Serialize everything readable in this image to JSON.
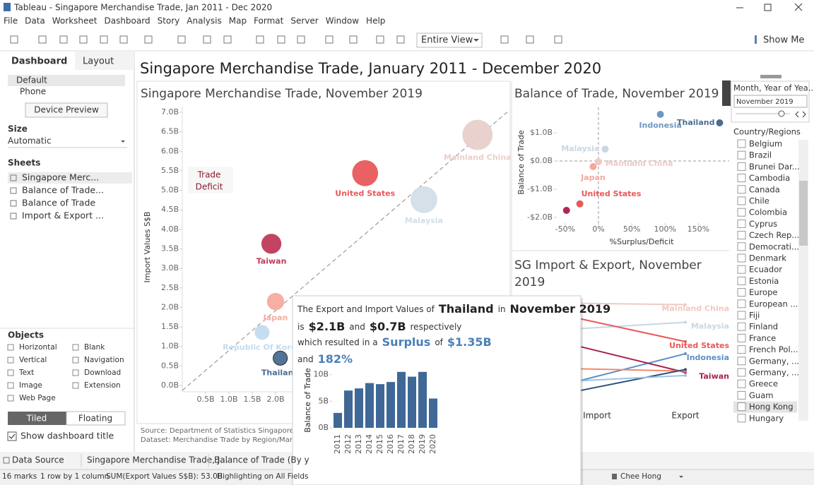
{
  "window": {
    "title": "Tableau - Singapore Merchandise Trade, Jan 2011 - Dec 2020"
  },
  "menu": [
    "File",
    "Data",
    "Worksheet",
    "Dashboard",
    "Story",
    "Analysis",
    "Map",
    "Format",
    "Server",
    "Window",
    "Help"
  ],
  "toolbar": {
    "view": "Entire View",
    "show_me": "Show Me"
  },
  "side_panel": {
    "tabs": [
      "Dashboard",
      "Layout"
    ],
    "devices": [
      "Default",
      "Phone"
    ],
    "device_preview": "Device Preview",
    "size_heading": "Size",
    "size_value": "Automatic",
    "sheets_heading": "Sheets",
    "sheets": [
      "Singapore Merc...",
      "Balance of Trade...",
      "Balance of Trade",
      "Import & Export ..."
    ],
    "objects_heading": "Objects",
    "objects": [
      "Horizontal",
      "Blank",
      "Vertical",
      "Navigation",
      "Text",
      "Download",
      "Image",
      "Extension",
      "Web Page"
    ],
    "layout_toggle": [
      "Tiled",
      "Floating"
    ],
    "show_title": "Show dashboard title"
  },
  "dashboard": {
    "title": "Singapore Merchandise Trade, January 2011 - December 2020",
    "scatter": {
      "title": "Singapore Merchandise Trade, November 2019",
      "y_label": "Import Values S$B",
      "annotation": [
        "Trade",
        "Deficit"
      ],
      "xlim": [
        0,
        7
      ],
      "ylim": [
        0,
        7
      ],
      "xticks": [
        {
          "value": 0.5,
          "label": "0.5B"
        },
        {
          "value": 1,
          "label": "1.0B"
        },
        {
          "value": 1.5,
          "label": "1.5B"
        },
        {
          "value": 2,
          "label": "2.0B"
        }
      ],
      "yticks": [
        {
          "value": 0,
          "label": "0.0B"
        },
        {
          "value": 0.5,
          "label": "0.5B"
        },
        {
          "value": 1,
          "label": "1.0B"
        },
        {
          "value": 1.5,
          "label": "1.5B"
        },
        {
          "value": 2,
          "label": "2.0B"
        },
        {
          "value": 2.5,
          "label": "2.5B"
        },
        {
          "value": 3,
          "label": "3.0B"
        },
        {
          "value": 3.5,
          "label": "3.5B"
        },
        {
          "value": 4,
          "label": "4.0B"
        },
        {
          "value": 4.5,
          "label": "4.5B"
        },
        {
          "value": 5,
          "label": "5.0B"
        },
        {
          "value": 5.5,
          "label": "5.5B"
        },
        {
          "value": 6,
          "label": "6.0B"
        },
        {
          "value": 6.5,
          "label": "6.5B"
        },
        {
          "value": 7,
          "label": "7.0B"
        }
      ],
      "points": [
        {
          "label": "Mainland China",
          "x": 6.33,
          "y": 6.42,
          "color": "#e8cfcb"
        },
        {
          "label": "United States",
          "x": 3.92,
          "y": 5.44,
          "color": "#e8585a"
        },
        {
          "label": "Malaysia",
          "x": 5.18,
          "y": 4.76,
          "color": "#d3dee8"
        },
        {
          "label": "Taiwan",
          "x": 1.91,
          "y": 3.63,
          "color": "#c0395a"
        },
        {
          "label": "Japan",
          "x": 2.0,
          "y": 2.15,
          "color": "#f6ab9d"
        },
        {
          "label": "Republic Of Korea",
          "x": 1.71,
          "y": 1.36,
          "color": "#c3dbef"
        },
        {
          "label": "Thailand",
          "x": 2.1,
          "y": 0.7,
          "color": "#4a6d94"
        }
      ],
      "source": [
        "Source: Department of Statistics Singapore (DO",
        "Dataset: Merchandise Trade by Region/Market"
      ]
    },
    "balance": {
      "title": "Balance of Trade, November 2019",
      "y_label": "Balance of Trade",
      "x_label": "%Surplus/Deficit",
      "xlim": [
        -70,
        190
      ],
      "ylim": [
        -2.3,
        1.8
      ],
      "xticks": [
        {
          "value": -50,
          "label": "-50%"
        },
        {
          "value": 0,
          "label": "0%"
        },
        {
          "value": 50,
          "label": "50%"
        },
        {
          "value": 100,
          "label": "100%"
        },
        {
          "value": 150,
          "label": "150%"
        }
      ],
      "yticks": [
        {
          "value": -2,
          "label": "-$2.0B"
        },
        {
          "value": -1,
          "label": "-$1.0B"
        },
        {
          "value": 0,
          "label": "$0.0B"
        },
        {
          "value": 1,
          "label": "$1.0B"
        }
      ],
      "points": [
        {
          "label": "Indonesia",
          "x": 93,
          "y": 1.65,
          "color": "#6f97c3"
        },
        {
          "label": "Thailand",
          "x": 182,
          "y": 1.35,
          "color": "#4a6d94"
        },
        {
          "label": "Malaysia",
          "x": 10,
          "y": 0.42,
          "color": "#c9d7e3"
        },
        {
          "label": "Mainland China",
          "x": 0,
          "y": -0.03,
          "color": "#ecc9c3"
        },
        {
          "label": "Japan",
          "x": -8,
          "y": -0.2,
          "color": "#f4a79a"
        },
        {
          "label": "United States",
          "x": -28,
          "y": -1.52,
          "color": "#e8585a"
        },
        {
          "label": null,
          "x": -48,
          "y": -1.75,
          "color": "#b0294f"
        }
      ]
    },
    "import_export": {
      "title": [
        "SG Import & Export, November",
        "2019"
      ],
      "axis": [
        "Import",
        "Export"
      ],
      "ylim": [
        0,
        7
      ],
      "series": [
        {
          "label": "Mainland China",
          "values": [
            6.42,
            6.33
          ],
          "color": "#f0cac2"
        },
        {
          "label": "Malaysia",
          "values": [
            4.76,
            5.18
          ],
          "color": "#c9d7e3"
        },
        {
          "label": "United States",
          "values": [
            5.44,
            3.92
          ],
          "color": "#e8585a"
        },
        {
          "label": "Indonesia",
          "values": [
            1.34,
            3.13
          ],
          "color": "#5b8fc6"
        },
        {
          "label": "Taiwan",
          "values": [
            3.63,
            1.91
          ],
          "color": "#a8214f"
        },
        {
          "label": null,
          "values": [
            2.15,
            2.0
          ],
          "color": "#f28a6e"
        },
        {
          "label": null,
          "values": [
            0.7,
            2.1
          ],
          "color": "#2e4f7c"
        },
        {
          "label": null,
          "values": [
            1.36,
            1.71
          ],
          "color": "#9cc3e4"
        }
      ]
    },
    "tooltip": {
      "lines": [
        [
          "The Export and Import Values of",
          "Thailand",
          "in",
          "November 2019"
        ],
        [
          "is",
          "$2.1B",
          "and",
          "$0.7B",
          "respectively"
        ],
        [
          "which resulted in a",
          "Surplus",
          "of",
          "$1.35B"
        ],
        [
          "and",
          "182%"
        ]
      ],
      "chart": {
        "y_label": "Balance of Trade",
        "ylim": [
          0,
          11
        ],
        "yticks": [
          {
            "value": 0,
            "label": "0B"
          },
          {
            "value": 5,
            "label": "5B"
          },
          {
            "value": 10,
            "label": "10B"
          }
        ],
        "categories": [
          "2011",
          "2012",
          "2013",
          "2014",
          "2015",
          "2016",
          "2017",
          "2018",
          "2019",
          "2020"
        ],
        "values": [
          2.8,
          7.0,
          7.4,
          8.4,
          8.2,
          8.6,
          10.5,
          9.6,
          10.5,
          5.5
        ],
        "color": "#3f6897"
      }
    },
    "filter": {
      "title": "Month, Year of Yea...",
      "value": "November 2019",
      "list_heading": "Country/Regions",
      "countries": [
        "Belgium",
        "Brazil",
        "Brunei Dar...",
        "Cambodia",
        "Canada",
        "Chile",
        "Colombia",
        "Cyprus",
        "Czech Rep...",
        "Democrati...",
        "Denmark",
        "Ecuador",
        "Estonia",
        "Europe",
        "European ...",
        "Fiji",
        "Finland",
        "France",
        "French Pol...",
        "Germany, ...",
        "Germany, ...",
        "Greece",
        "Guam",
        "Hong Kong",
        "Hungary"
      ]
    }
  },
  "bottom_tabs": [
    "Data Source",
    "Singapore Merchandise Trade, J...",
    "Balance of Trade (By y"
  ],
  "status": [
    "16 marks",
    "1 row by 1 column",
    "SUM(Export Values S$B): 53.0B",
    "Highlighting on All Fields"
  ],
  "user": "Chee Hong"
}
